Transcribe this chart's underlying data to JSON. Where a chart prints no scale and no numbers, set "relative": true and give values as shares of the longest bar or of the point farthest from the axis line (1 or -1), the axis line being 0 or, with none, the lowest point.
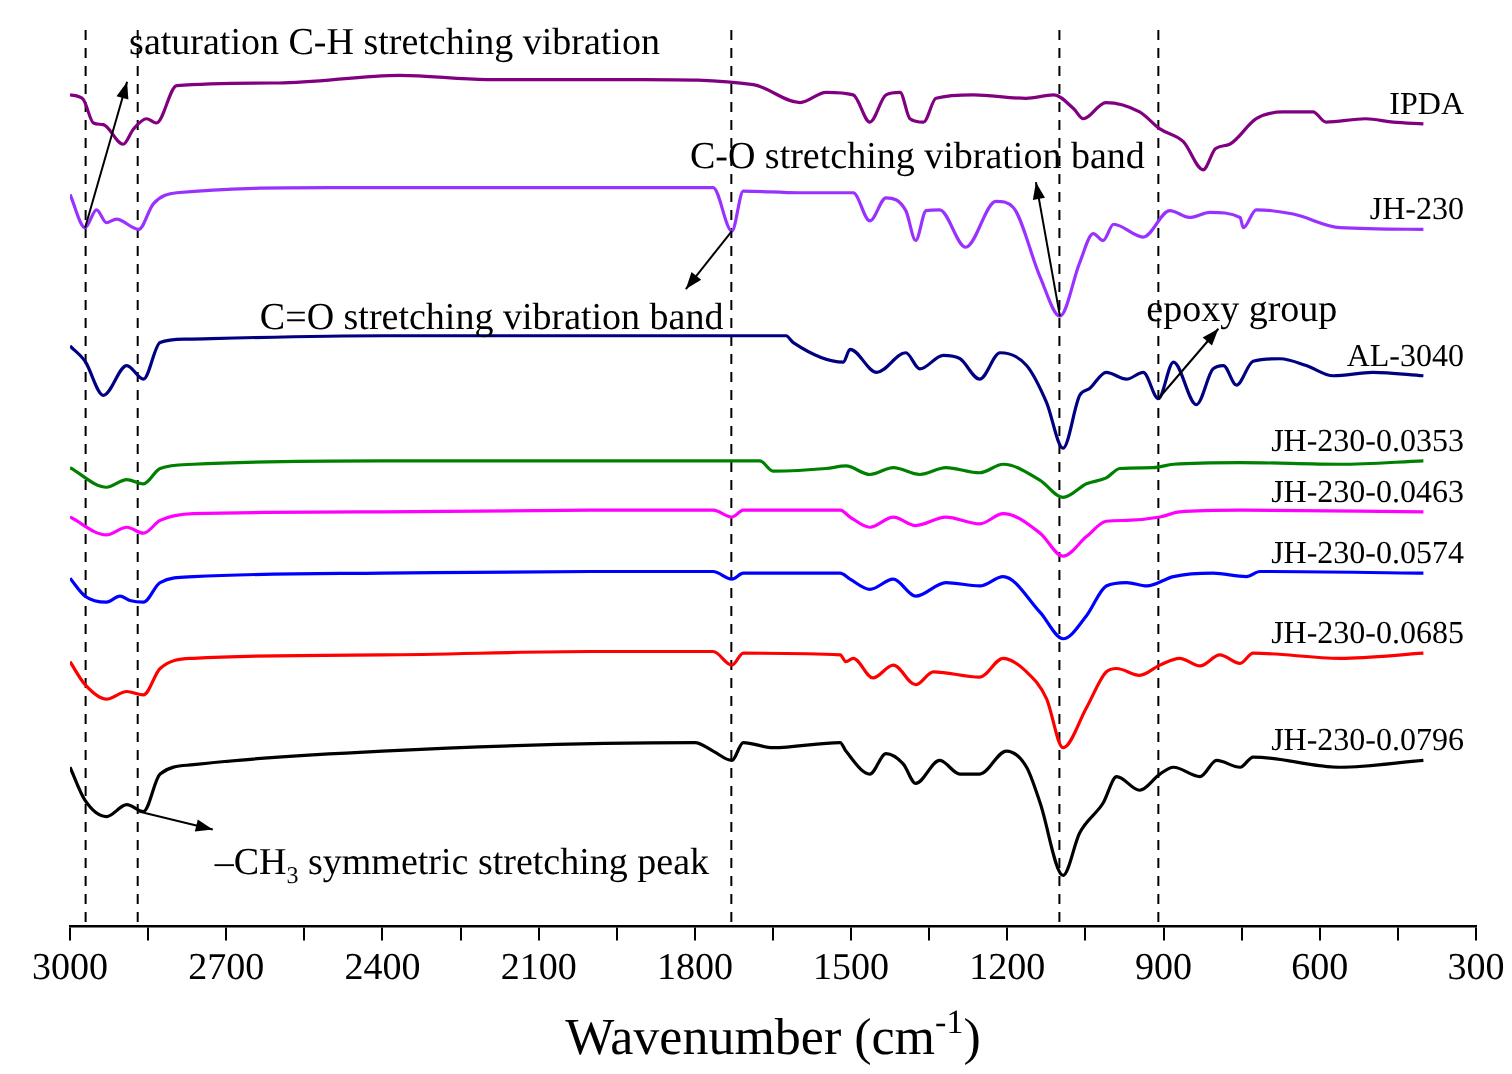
{
  "chart_data": {
    "type": "line",
    "relative": true,
    "xlabel": "Wavenumber (cm$^{-1}$)",
    "xlim": [
      3000,
      300
    ],
    "xticks": [
      3000,
      {
        "value": 2850,
        "label": null
      },
      2700,
      {
        "value": 2550,
        "label": null
      },
      2400,
      {
        "value": 2250,
        "label": null
      },
      2100,
      {
        "value": 1950,
        "label": null
      },
      1800,
      {
        "value": 1650,
        "label": null
      },
      1500,
      {
        "value": 1350,
        "label": null
      },
      1200,
      {
        "value": 1050,
        "label": null
      },
      900,
      {
        "value": 750,
        "label": null
      },
      600,
      {
        "value": 450,
        "label": null
      },
      300
    ],
    "legend": false,
    "grid": false,
    "marker": "none",
    "line_style": "solid",
    "ref_lines": [
      {
        "axis": "x",
        "value": 2970,
        "color": "#000000",
        "line_style": "dashed"
      },
      {
        "axis": "x",
        "value": 2870,
        "color": "#000000",
        "line_style": "dashed"
      },
      {
        "axis": "x",
        "value": 1730,
        "color": "#000000",
        "line_style": "dashed"
      },
      {
        "axis": "x",
        "value": 1100,
        "color": "#000000",
        "line_style": "dashed"
      },
      {
        "axis": "x",
        "value": 910,
        "color": "#000000",
        "line_style": "dashed"
      }
    ],
    "annotations": [
      {
        "text": "saturation C-H stretching vibration",
        "x": 2971,
        "y": 0.821
      },
      {
        "text": "C=O stretching vibration band",
        "x": 1729,
        "y": 0.817
      },
      {
        "text": "C-O stretching vibration band",
        "x": 1099,
        "y": 0.717
      },
      {
        "text": "epoxy group",
        "x": 910,
        "y": 0.62
      },
      {
        "text": "–CH$_{3}$ symmetric stretching peak",
        "x": 2868,
        "y": 0.135
      }
    ],
    "series": [
      {
        "name": "IPDA",
        "color": "#800080",
        "x": [
          3000,
          2975,
          2955,
          2936,
          2898,
          2878,
          2853,
          2834,
          2795,
          2600,
          2366,
          2200,
          1900,
          1688,
          1598,
          1548,
          1496,
          1464,
          1433,
          1406,
          1387,
          1361,
          1337,
          1265,
          1164,
          1111,
          1073,
          1054,
          1011,
          946,
          907,
          862,
          824,
          800,
          773,
          722,
          670,
          613,
          588,
          512,
          459,
          401
        ],
        "values": [
          0.977,
          0.972,
          0.944,
          0.942,
          0.919,
          0.937,
          0.949,
          0.944,
          0.988,
          0.991,
          1,
          0.995,
          0.995,
          0.989,
          0.968,
          0.98,
          0.977,
          0.945,
          0.977,
          0.98,
          0.949,
          0.945,
          0.973,
          0.977,
          0.973,
          0.977,
          0.961,
          0.949,
          0.968,
          0.957,
          0.937,
          0.922,
          0.889,
          0.914,
          0.919,
          0.949,
          0.957,
          0.957,
          0.945,
          0.949,
          0.945,
          0.943
        ]
      },
      {
        "name": "JH-230",
        "color": "#9932ff",
        "x": [
          3000,
          2971,
          2949,
          2930,
          2911,
          2868,
          2840,
          2795,
          2500,
          2000,
          1765,
          1729,
          1707,
          1600,
          1496,
          1464,
          1433,
          1395,
          1376,
          1356,
          1330,
          1280,
          1222,
          1189,
          1137,
          1099,
          1061,
          1035,
          1016,
          996,
          939,
          888,
          850,
          811,
          753,
          747,
          722,
          651,
          561,
          401
        ],
        "values": [
          0.86,
          0.821,
          0.842,
          0.827,
          0.831,
          0.819,
          0.849,
          0.862,
          0.868,
          0.868,
          0.868,
          0.817,
          0.864,
          0.862,
          0.862,
          0.829,
          0.856,
          0.841,
          0.806,
          0.841,
          0.842,
          0.798,
          0.852,
          0.845,
          0.763,
          0.717,
          0.78,
          0.814,
          0.806,
          0.825,
          0.81,
          0.841,
          0.833,
          0.839,
          0.833,
          0.821,
          0.842,
          0.837,
          0.821,
          0.819
        ]
      },
      {
        "name": "AL-3040",
        "color": "#000080",
        "x": [
          3000,
          2971,
          2936,
          2891,
          2859,
          2827,
          2776,
          2400,
          2000,
          1625,
          1611,
          1515,
          1502,
          1451,
          1395,
          1368,
          1323,
          1291,
          1253,
          1214,
          1163,
          1125,
          1093,
          1061,
          1042,
          1010,
          971,
          939,
          910,
          881,
          837,
          805,
          785,
          760,
          728,
          676,
          626,
          574,
          498,
          401
        ],
        "values": [
          0.682,
          0.664,
          0.624,
          0.659,
          0.643,
          0.686,
          0.69,
          0.694,
          0.694,
          0.694,
          0.686,
          0.663,
          0.678,
          0.651,
          0.674,
          0.655,
          0.671,
          0.667,
          0.643,
          0.674,
          0.659,
          0.616,
          0.562,
          0.624,
          0.632,
          0.651,
          0.643,
          0.651,
          0.62,
          0.663,
          0.613,
          0.655,
          0.659,
          0.636,
          0.664,
          0.667,
          0.659,
          0.647,
          0.651,
          0.647
        ]
      },
      {
        "name": "JH-230-0.0353",
        "color": "#008000",
        "x": [
          3000,
          2930,
          2891,
          2859,
          2827,
          2763,
          2400,
          2000,
          1675,
          1650,
          1548,
          1510,
          1464,
          1419,
          1368,
          1318,
          1253,
          1208,
          1137,
          1093,
          1048,
          1010,
          984,
          920,
          881,
          753,
          561,
          401
        ],
        "values": [
          0.539,
          0.516,
          0.525,
          0.52,
          0.538,
          0.543,
          0.547,
          0.547,
          0.547,
          0.535,
          0.538,
          0.541,
          0.531,
          0.539,
          0.531,
          0.539,
          0.533,
          0.543,
          0.524,
          0.504,
          0.52,
          0.527,
          0.538,
          0.539,
          0.543,
          0.545,
          0.543,
          0.547
        ]
      },
      {
        "name": "JH-230-0.0463",
        "color": "#ff00ff",
        "x": [
          3000,
          2930,
          2891,
          2859,
          2827,
          2763,
          2400,
          2000,
          1765,
          1729,
          1707,
          1521,
          1502,
          1464,
          1419,
          1376,
          1318,
          1253,
          1208,
          1137,
          1093,
          1048,
          1010,
          971,
          907,
          869,
          753,
          401
        ],
        "values": [
          0.481,
          0.46,
          0.469,
          0.462,
          0.477,
          0.485,
          0.487,
          0.489,
          0.489,
          0.481,
          0.489,
          0.489,
          0.481,
          0.469,
          0.481,
          0.471,
          0.481,
          0.473,
          0.485,
          0.462,
          0.435,
          0.458,
          0.476,
          0.477,
          0.481,
          0.487,
          0.489,
          0.487
        ]
      },
      {
        "name": "JH-230-0.0574",
        "color": "#0000ff",
        "x": [
          3000,
          2971,
          2930,
          2904,
          2885,
          2859,
          2827,
          2763,
          2400,
          2000,
          1765,
          1729,
          1707,
          1521,
          1502,
          1464,
          1419,
          1376,
          1318,
          1253,
          1208,
          1137,
          1093,
          1048,
          1010,
          971,
          932,
          881,
          805,
          741,
          715,
          401
        ],
        "values": [
          0.409,
          0.388,
          0.381,
          0.388,
          0.383,
          0.381,
          0.404,
          0.411,
          0.415,
          0.417,
          0.417,
          0.408,
          0.415,
          0.415,
          0.408,
          0.396,
          0.408,
          0.388,
          0.404,
          0.4,
          0.411,
          0.369,
          0.338,
          0.365,
          0.4,
          0.404,
          0.4,
          0.411,
          0.415,
          0.411,
          0.417,
          0.415
        ]
      },
      {
        "name": "JH-230-0.0685",
        "color": "#ff0000",
        "x": [
          3000,
          2971,
          2930,
          2891,
          2859,
          2827,
          2763,
          2400,
          2000,
          1765,
          1729,
          1707,
          1521,
          1510,
          1496,
          1458,
          1419,
          1376,
          1342,
          1253,
          1208,
          1163,
          1125,
          1093,
          1048,
          1010,
          990,
          946,
          907,
          869,
          830,
          792,
          753,
          728,
          561,
          401
        ],
        "values": [
          0.311,
          0.284,
          0.267,
          0.276,
          0.272,
          0.303,
          0.315,
          0.319,
          0.323,
          0.323,
          0.307,
          0.321,
          0.319,
          0.311,
          0.315,
          0.292,
          0.307,
          0.284,
          0.299,
          0.293,
          0.315,
          0.299,
          0.268,
          0.21,
          0.257,
          0.299,
          0.303,
          0.295,
          0.307,
          0.315,
          0.306,
          0.319,
          0.309,
          0.321,
          0.315,
          0.321
        ]
      },
      {
        "name": "JH-230-0.0796",
        "color": "#000000",
        "x": [
          3000,
          2971,
          2930,
          2891,
          2859,
          2827,
          2763,
          2400,
          1800,
          1765,
          1729,
          1707,
          1650,
          1521,
          1510,
          1464,
          1433,
          1400,
          1376,
          1330,
          1291,
          1253,
          1202,
          1163,
          1137,
          1093,
          1061,
          1016,
          990,
          946,
          907,
          881,
          830,
          798,
          753,
          728,
          561,
          401
        ],
        "values": [
          0.187,
          0.148,
          0.129,
          0.143,
          0.135,
          0.179,
          0.19,
          0.206,
          0.216,
          0.206,
          0.195,
          0.216,
          0.21,
          0.216,
          0.206,
          0.179,
          0.203,
          0.191,
          0.168,
          0.195,
          0.179,
          0.179,
          0.206,
          0.187,
          0.145,
          0.06,
          0.11,
          0.145,
          0.176,
          0.16,
          0.179,
          0.187,
          0.176,
          0.195,
          0.187,
          0.199,
          0.187,
          0.195
        ]
      }
    ]
  }
}
